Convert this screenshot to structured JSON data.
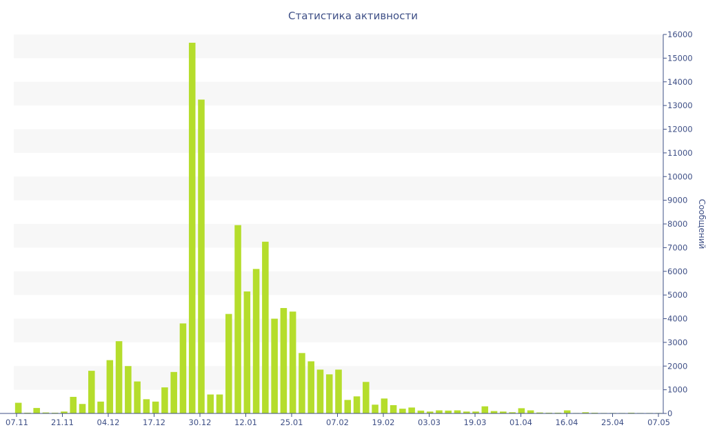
{
  "chart_data": {
    "type": "bar",
    "title": "Статистика активности",
    "ylabel": "Сообщений",
    "xlabel": "",
    "ylim": [
      0,
      16000
    ],
    "y_ticks": [
      0,
      1000,
      2000,
      3000,
      4000,
      5000,
      6000,
      7000,
      8000,
      9000,
      10000,
      11000,
      12000,
      13000,
      14000,
      15000,
      16000
    ],
    "x_tick_labels": [
      "07.11",
      "21.11",
      "04.12",
      "17.12",
      "30.12",
      "12.01",
      "25.01",
      "07.02",
      "19.02",
      "03.03",
      "19.03",
      "01.04",
      "16.04",
      "25.04",
      "07.05"
    ],
    "grid": "horizontal alternating bands",
    "legend": "none",
    "bar_color": "#b5dd2c",
    "axis_color": "#3e4f86",
    "values": [
      450,
      30,
      230,
      40,
      30,
      80,
      700,
      400,
      1800,
      500,
      2250,
      3050,
      2000,
      1350,
      600,
      500,
      1100,
      1750,
      3800,
      15650,
      13250,
      800,
      800,
      4200,
      7950,
      5150,
      6100,
      7250,
      4000,
      4450,
      4300,
      2550,
      2200,
      1850,
      1650,
      1850,
      570,
      720,
      1330,
      370,
      630,
      350,
      200,
      250,
      120,
      80,
      130,
      120,
      130,
      80,
      80,
      300,
      100,
      80,
      50,
      220,
      130,
      40,
      30,
      30,
      130,
      20,
      50,
      30,
      20,
      20,
      20,
      30,
      20,
      20,
      20
    ]
  }
}
